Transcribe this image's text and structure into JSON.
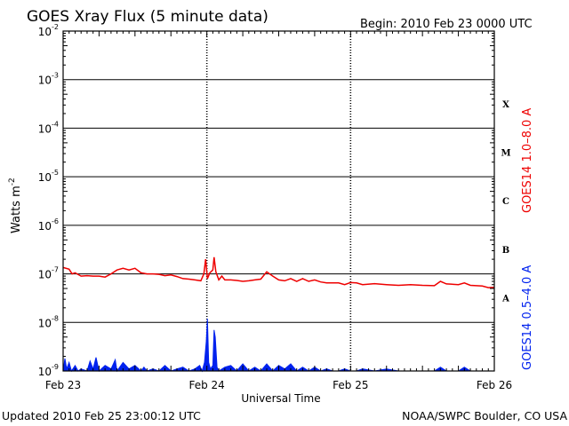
{
  "colors": {
    "long": "#ee0000",
    "short": "#0022ee",
    "frame": "#000000",
    "background": "#ffffff"
  },
  "header": {
    "title": "GOES Xray Flux (5 minute data)",
    "begin": "Begin:  2010 Feb 23 0000 UTC"
  },
  "footer": {
    "updated": "Updated 2010 Feb 25 23:00:12 UTC",
    "source": "NOAA/SWPC Boulder, CO USA"
  },
  "chart_data": {
    "type": "line",
    "title": "GOES Xray Flux (5 minute data)",
    "xlabel": "Universal Time",
    "ylabel": "Watts m",
    "ylabel_sup": "-2",
    "y_scale": "log",
    "ylim": [
      1e-09,
      0.01
    ],
    "xlim": [
      0,
      72
    ],
    "x_unit": "hours since 2010 Feb 23 0000 UTC",
    "grid": "horizontal per decade, dotted vertical per day",
    "x_ticks": [
      {
        "x": 0,
        "label": "Feb 23"
      },
      {
        "x": 24,
        "label": "Feb 24"
      },
      {
        "x": 48,
        "label": "Feb 25"
      },
      {
        "x": 72,
        "label": "Feb 26"
      }
    ],
    "y_ticks": [
      {
        "base": "10",
        "exp": "-2",
        "value": 0.01
      },
      {
        "base": "10",
        "exp": "-3",
        "value": 0.001
      },
      {
        "base": "10",
        "exp": "-4",
        "value": 0.0001
      },
      {
        "base": "10",
        "exp": "-5",
        "value": 1e-05
      },
      {
        "base": "10",
        "exp": "-6",
        "value": 1e-06
      },
      {
        "base": "10",
        "exp": "-7",
        "value": 1e-07
      },
      {
        "base": "10",
        "exp": "-8",
        "value": 1e-08
      },
      {
        "base": "10",
        "exp": "-9",
        "value": 1e-09
      }
    ],
    "flare_classes": [
      {
        "label": "X",
        "value": 0.00032
      },
      {
        "label": "M",
        "value": 3.2e-05
      },
      {
        "label": "C",
        "value": 3.2e-06
      },
      {
        "label": "B",
        "value": 3.2e-07
      },
      {
        "label": "A",
        "value": 3.2e-08
      }
    ],
    "series": [
      {
        "name": "GOES14 1.0–8.0 A",
        "color": "#ee0000",
        "points": [
          [
            0,
            1.35e-07
          ],
          [
            1,
            1.25e-07
          ],
          [
            1.5,
            1e-07
          ],
          [
            2,
            1.05e-07
          ],
          [
            3,
            9e-08
          ],
          [
            4,
            9.2e-08
          ],
          [
            5,
            9e-08
          ],
          [
            6,
            9e-08
          ],
          [
            7,
            8.6e-08
          ],
          [
            8,
            1e-07
          ],
          [
            9,
            1.2e-07
          ],
          [
            10,
            1.3e-07
          ],
          [
            11,
            1.2e-07
          ],
          [
            12,
            1.3e-07
          ],
          [
            13,
            1.05e-07
          ],
          [
            14,
            1e-07
          ],
          [
            15,
            1e-07
          ],
          [
            16,
            9.8e-08
          ],
          [
            17,
            9.2e-08
          ],
          [
            18,
            9.5e-08
          ],
          [
            19,
            8.8e-08
          ],
          [
            20,
            8e-08
          ],
          [
            21,
            7.8e-08
          ],
          [
            22,
            7.5e-08
          ],
          [
            23,
            7.2e-08
          ],
          [
            23.5,
            1e-07
          ],
          [
            23.8,
            2e-07
          ],
          [
            24.1,
            8e-08
          ],
          [
            24.5,
            1.05e-07
          ],
          [
            25,
            1.2e-07
          ],
          [
            25.2,
            2.2e-07
          ],
          [
            25.5,
            1.1e-07
          ],
          [
            26,
            7.5e-08
          ],
          [
            26.5,
            9e-08
          ],
          [
            27,
            7.5e-08
          ],
          [
            28,
            7.5e-08
          ],
          [
            29,
            7.3e-08
          ],
          [
            30,
            7e-08
          ],
          [
            31,
            7.2e-08
          ],
          [
            32,
            7.5e-08
          ],
          [
            33,
            7.8e-08
          ],
          [
            34,
            1.1e-07
          ],
          [
            35,
            9e-08
          ],
          [
            36,
            7.5e-08
          ],
          [
            37,
            7.2e-08
          ],
          [
            38,
            8e-08
          ],
          [
            39,
            7e-08
          ],
          [
            40,
            8e-08
          ],
          [
            41,
            7e-08
          ],
          [
            42,
            7.5e-08
          ],
          [
            43,
            6.8e-08
          ],
          [
            44,
            6.5e-08
          ],
          [
            45,
            6.5e-08
          ],
          [
            46,
            6.5e-08
          ],
          [
            47,
            6e-08
          ],
          [
            48,
            6.6e-08
          ],
          [
            49,
            6.5e-08
          ],
          [
            50,
            6e-08
          ],
          [
            52,
            6.3e-08
          ],
          [
            54,
            6e-08
          ],
          [
            56,
            5.8e-08
          ],
          [
            58,
            6e-08
          ],
          [
            60,
            5.8e-08
          ],
          [
            62,
            5.7e-08
          ],
          [
            63,
            7e-08
          ],
          [
            64,
            6.2e-08
          ],
          [
            66,
            6e-08
          ],
          [
            67,
            6.5e-08
          ],
          [
            68,
            5.8e-08
          ],
          [
            70,
            5.6e-08
          ],
          [
            71,
            5.2e-08
          ],
          [
            72,
            5.3e-08
          ]
        ]
      },
      {
        "name": "GOES14 0.5–4.0 A",
        "color": "#0022ee",
        "points": [
          [
            0,
            1e-09
          ],
          [
            0.3,
            1.8e-09
          ],
          [
            0.6,
            1.1e-09
          ],
          [
            1,
            1.5e-09
          ],
          [
            1.4,
            1e-09
          ],
          [
            2,
            1.3e-09
          ],
          [
            2.5,
            1e-09
          ],
          [
            3,
            1.1e-09
          ],
          [
            4,
            1e-09
          ],
          [
            4.5,
            1.6e-09
          ],
          [
            5,
            1.1e-09
          ],
          [
            5.5,
            1.9e-09
          ],
          [
            6,
            1e-09
          ],
          [
            7,
            1.3e-09
          ],
          [
            8,
            1.1e-09
          ],
          [
            8.7,
            1.7e-09
          ],
          [
            9,
            1e-09
          ],
          [
            10,
            1.5e-09
          ],
          [
            11,
            1.1e-09
          ],
          [
            12,
            1.3e-09
          ],
          [
            13,
            1e-09
          ],
          [
            13.5,
            1.2e-09
          ],
          [
            14,
            1e-09
          ],
          [
            15,
            1.1e-09
          ],
          [
            16,
            1e-09
          ],
          [
            17,
            1.3e-09
          ],
          [
            18,
            1e-09
          ],
          [
            19,
            1.1e-09
          ],
          [
            20,
            1.2e-09
          ],
          [
            21,
            1e-09
          ],
          [
            22,
            1.1e-09
          ],
          [
            22.8,
            1.3e-09
          ],
          [
            23.2,
            1e-09
          ],
          [
            23.6,
            1.5e-09
          ],
          [
            23.9,
            4e-09
          ],
          [
            24.1,
            1.2e-08
          ],
          [
            24.3,
            1.5e-09
          ],
          [
            24.6,
            1.1e-09
          ],
          [
            25,
            1.3e-09
          ],
          [
            25.2,
            7e-09
          ],
          [
            25.4,
            5e-09
          ],
          [
            25.7,
            1.2e-09
          ],
          [
            26,
            1e-09
          ],
          [
            27,
            1.2e-09
          ],
          [
            28,
            1.3e-09
          ],
          [
            29,
            1e-09
          ],
          [
            30,
            1.4e-09
          ],
          [
            31,
            1e-09
          ],
          [
            32,
            1.2e-09
          ],
          [
            33,
            1e-09
          ],
          [
            34,
            1.4e-09
          ],
          [
            35,
            1e-09
          ],
          [
            36,
            1.3e-09
          ],
          [
            37,
            1.1e-09
          ],
          [
            38,
            1.4e-09
          ],
          [
            39,
            1e-09
          ],
          [
            40,
            1.2e-09
          ],
          [
            41,
            1e-09
          ],
          [
            42,
            1.2e-09
          ],
          [
            43,
            1e-09
          ],
          [
            44,
            1.1e-09
          ],
          [
            45,
            1e-09
          ],
          [
            46,
            1e-09
          ],
          [
            47,
            1.1e-09
          ],
          [
            48,
            1e-09
          ],
          [
            49,
            1e-09
          ],
          [
            50,
            1.1e-09
          ],
          [
            52,
            1e-09
          ],
          [
            54,
            1.1e-09
          ],
          [
            56,
            1e-09
          ],
          [
            58,
            1e-09
          ],
          [
            60,
            1e-09
          ],
          [
            62,
            1e-09
          ],
          [
            63,
            1.2e-09
          ],
          [
            64,
            1e-09
          ],
          [
            66,
            1e-09
          ],
          [
            67,
            1.2e-09
          ],
          [
            68,
            1e-09
          ],
          [
            70,
            1e-09
          ],
          [
            72,
            1e-09
          ]
        ]
      }
    ]
  }
}
